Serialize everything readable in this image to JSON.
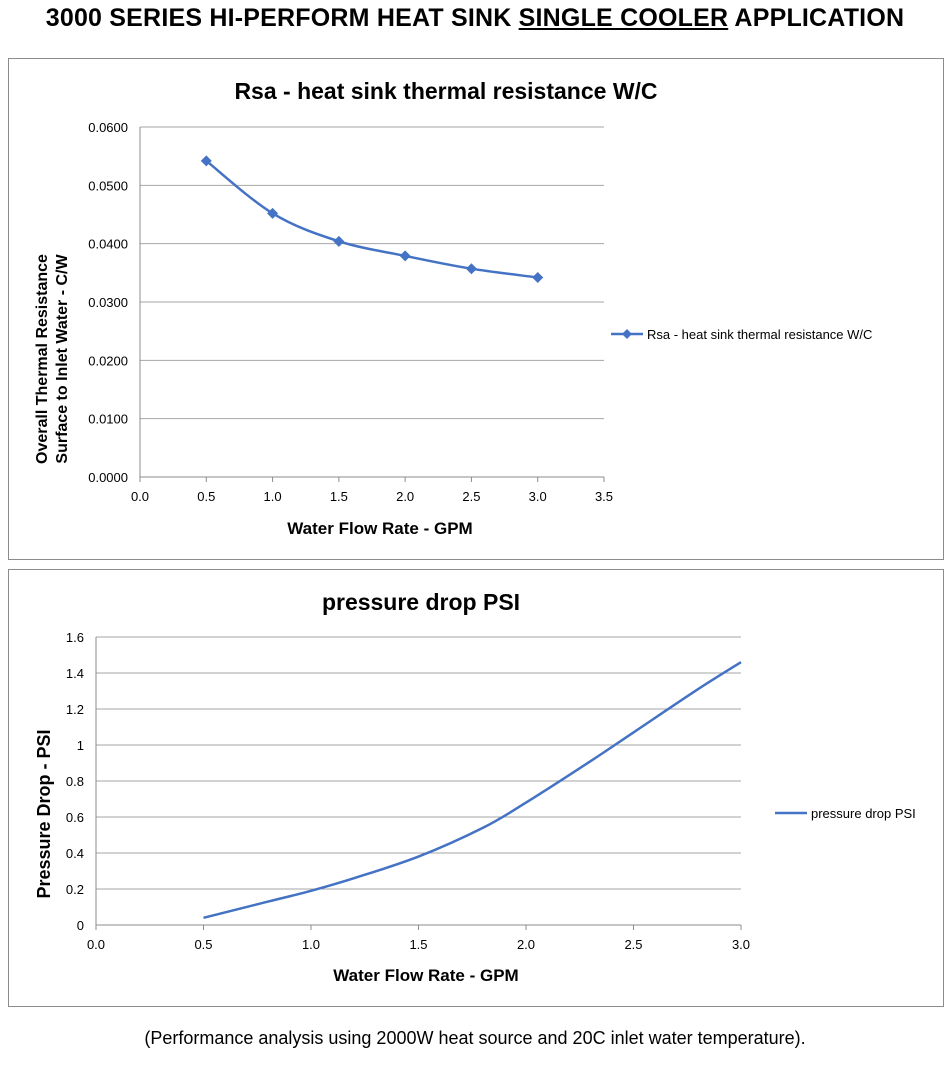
{
  "header": {
    "title_prefix": "3000 SERIES HI-PERFORM HEAT SINK ",
    "title_underlined": "SINGLE COOLER",
    "title_suffix": " APPLICATION"
  },
  "footnote": "(Performance analysis using 2000W heat source and 20C inlet water temperature).",
  "colors": {
    "series": "#4472c4",
    "grid": "#a6a6a6",
    "axis": "#8c8c8c"
  },
  "chart_data": [
    {
      "type": "line",
      "marker": "diamond",
      "title": "Rsa - heat sink thermal resistance  W/C",
      "xlabel": "Water Flow Rate - GPM",
      "ylabel_line1": "Overall Thermal Resistance",
      "ylabel_line2": "Surface to Inlet Water - C/W",
      "xlim": [
        0,
        3.5
      ],
      "ylim": [
        0,
        0.06
      ],
      "x_ticks": [
        "0.0",
        "0.5",
        "1.0",
        "1.5",
        "2.0",
        "2.5",
        "3.0",
        "3.5"
      ],
      "y_ticks": [
        "0.0000",
        "0.0100",
        "0.0200",
        "0.0300",
        "0.0400",
        "0.0500",
        "0.0600"
      ],
      "grid": true,
      "legend": "right",
      "series": [
        {
          "name": "Rsa - heat sink thermal resistance  W/C",
          "x": [
            0.5,
            1.0,
            1.5,
            2.0,
            2.5,
            3.0
          ],
          "values": [
            0.0542,
            0.0452,
            0.0404,
            0.0379,
            0.0357,
            0.0342
          ]
        }
      ]
    },
    {
      "type": "line",
      "marker": "none",
      "title": "pressure drop  PSI",
      "xlabel": "Water Flow Rate - GPM",
      "ylabel": "Pressure Drop - PSI",
      "xlim": [
        0,
        3.0
      ],
      "ylim": [
        0,
        1.6
      ],
      "x_ticks": [
        "0.0",
        "0.5",
        "1.0",
        "1.5",
        "2.0",
        "2.5",
        "3.0"
      ],
      "y_ticks": [
        "0",
        "0.2",
        "0.4",
        "0.6",
        "0.8",
        "1",
        "1.2",
        "1.4",
        "1.6"
      ],
      "grid": true,
      "legend": "right",
      "series": [
        {
          "name": "pressure drop  PSI",
          "x": [
            0.5,
            0.8,
            1.0,
            1.2,
            1.5,
            1.8,
            2.0,
            2.3,
            2.5,
            2.8,
            3.0
          ],
          "values": [
            0.04,
            0.13,
            0.19,
            0.26,
            0.38,
            0.54,
            0.68,
            0.91,
            1.07,
            1.31,
            1.46
          ]
        }
      ]
    }
  ]
}
